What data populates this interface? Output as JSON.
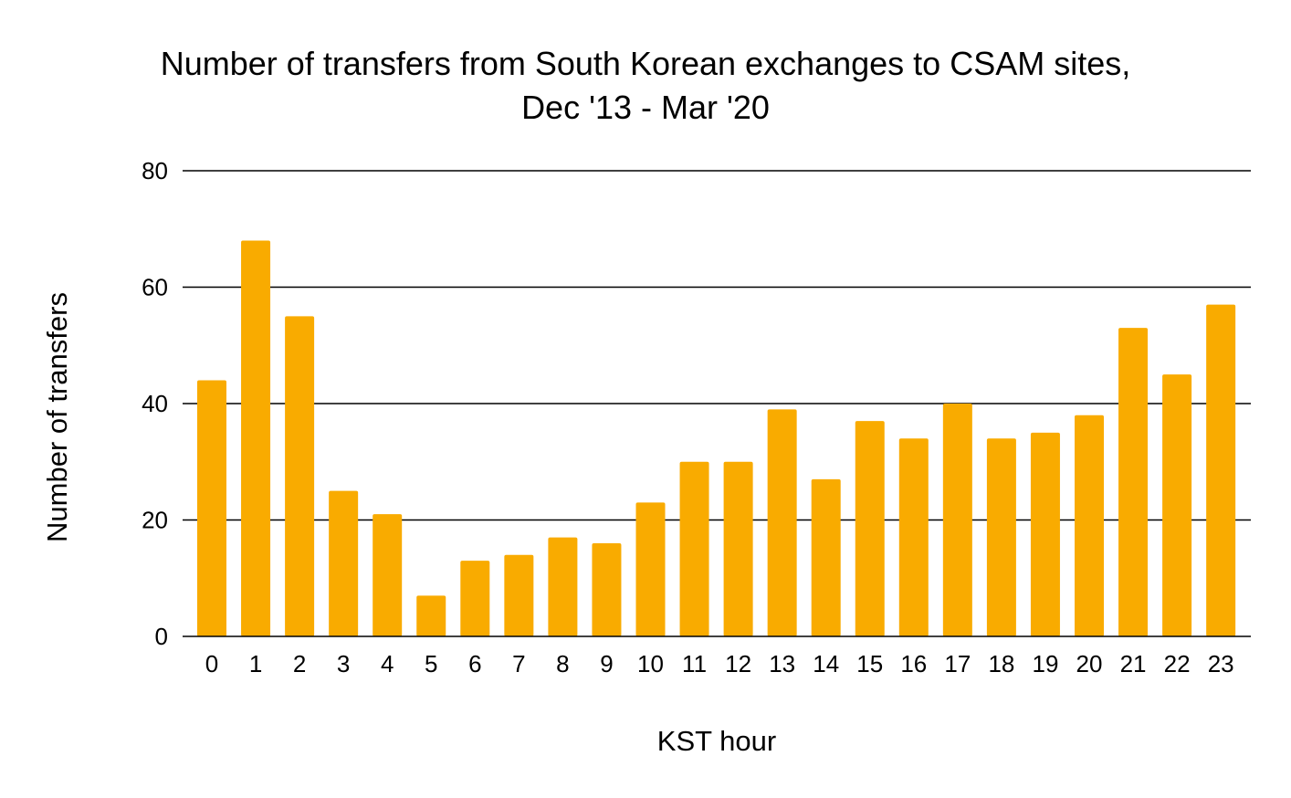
{
  "chart_data": {
    "type": "bar",
    "title": "Number of transfers from South Korean exchanges to CSAM sites,",
    "subtitle": "Dec '13 - Mar '20",
    "xlabel": "KST hour",
    "ylabel": "Number of transfers",
    "categories": [
      "0",
      "1",
      "2",
      "3",
      "4",
      "5",
      "6",
      "7",
      "8",
      "9",
      "10",
      "11",
      "12",
      "13",
      "14",
      "15",
      "16",
      "17",
      "18",
      "19",
      "20",
      "21",
      "22",
      "23"
    ],
    "values": [
      44,
      68,
      55,
      25,
      21,
      7,
      13,
      14,
      17,
      16,
      23,
      30,
      30,
      39,
      27,
      37,
      34,
      40,
      34,
      35,
      38,
      53,
      45,
      57
    ],
    "ylim": [
      0,
      80
    ],
    "yticks": [
      "0",
      "20",
      "40",
      "60",
      "80"
    ],
    "ytick_values": [
      0,
      20,
      40,
      60,
      80
    ],
    "grid": true,
    "legend": "none",
    "bar_color": "#F9AB00",
    "grid_color": "#000000"
  }
}
